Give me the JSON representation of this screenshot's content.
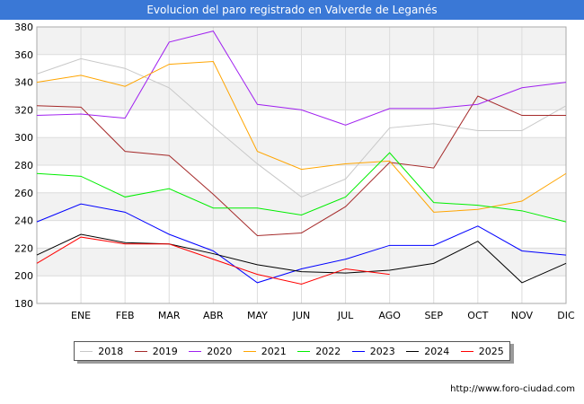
{
  "header": {
    "title": "Evolucion del paro registrado en Valverde de Leganés"
  },
  "footer": {
    "source": "http://www.foro-ciudad.com"
  },
  "chart_data": {
    "type": "line",
    "title": "Evolucion del paro registrado en Valverde de Leganés",
    "xlabel": "",
    "ylabel": "",
    "categories": [
      "",
      "ENE",
      "FEB",
      "MAR",
      "ABR",
      "MAY",
      "JUN",
      "JUL",
      "AGO",
      "SEP",
      "OCT",
      "NOV",
      "DIC"
    ],
    "ylim": [
      180,
      380
    ],
    "yticks": [
      180,
      200,
      220,
      240,
      260,
      280,
      300,
      320,
      340,
      360,
      380
    ],
    "grid": true,
    "legend_position": "bottom",
    "series": [
      {
        "name": "2018",
        "color": "#c8c8c8",
        "values": [
          346,
          357,
          350,
          336,
          308,
          281,
          257,
          270,
          307,
          310,
          305,
          305,
          323
        ]
      },
      {
        "name": "2019",
        "color": "#a52a2a",
        "values": [
          323,
          322,
          290,
          287,
          259,
          229,
          231,
          250,
          282,
          278,
          330,
          316,
          316
        ]
      },
      {
        "name": "2020",
        "color": "#a020f0",
        "values": [
          316,
          317,
          314,
          369,
          377,
          324,
          320,
          309,
          321,
          321,
          324,
          336,
          340
        ]
      },
      {
        "name": "2021",
        "color": "#ffa500",
        "values": [
          340,
          345,
          337,
          353,
          355,
          290,
          277,
          281,
          283,
          246,
          248,
          254,
          274
        ]
      },
      {
        "name": "2022",
        "color": "#00ee00",
        "values": [
          274,
          272,
          257,
          263,
          249,
          249,
          244,
          257,
          289,
          253,
          251,
          247,
          239
        ]
      },
      {
        "name": "2023",
        "color": "#0000ff",
        "values": [
          239,
          252,
          246,
          230,
          218,
          195,
          205,
          212,
          222,
          222,
          236,
          218,
          215
        ]
      },
      {
        "name": "2024",
        "color": "#000000",
        "values": [
          215,
          230,
          224,
          223,
          216,
          208,
          203,
          202,
          204,
          209,
          225,
          195,
          209
        ]
      },
      {
        "name": "2025",
        "color": "#ff0000",
        "values": [
          209,
          228,
          223,
          223,
          212,
          201,
          194,
          205,
          201,
          null,
          null,
          null,
          null
        ]
      }
    ]
  }
}
